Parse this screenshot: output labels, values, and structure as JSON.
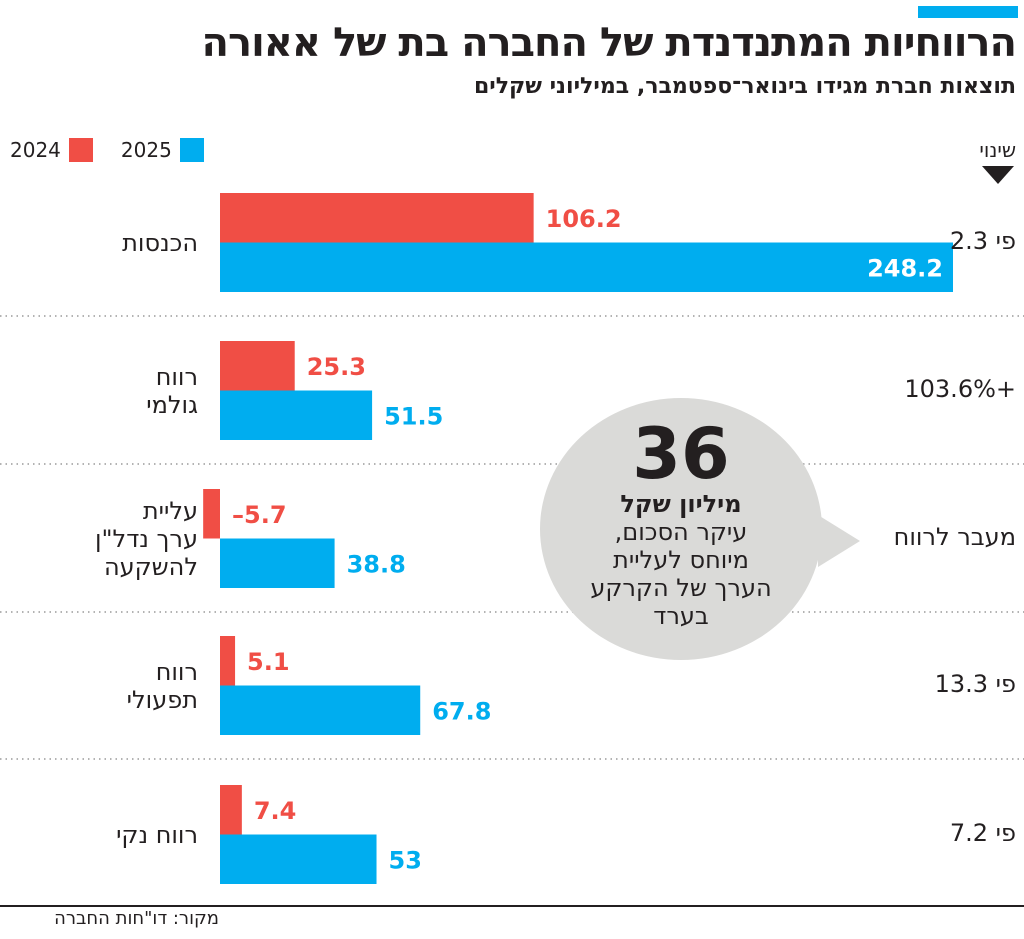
{
  "title": "הרווחיות המתנדנדת של החברה בת של אאורה",
  "subtitle": "תוצאות חברת מגידו בינואר־ספטמבר, במיליוני שקלים",
  "change_header": "שינוי",
  "source": "מקור: דו\"חות החברה",
  "colors": {
    "2024": "#f04e45",
    "2025": "#00adef",
    "accent": "#00adef",
    "bubble": "#dadad8"
  },
  "chart_data": {
    "type": "bar",
    "orientation": "horizontal",
    "categories": [
      "הכנסות",
      "רווח גולמי",
      "עליית ערך נדל\"ן להשקעה",
      "רווח תפעולי",
      "רווח נקי"
    ],
    "category_labels": [
      [
        "הכנסות"
      ],
      [
        "רווח",
        "גולמי"
      ],
      [
        "עליית",
        "ערך נדל\"ן",
        "להשקעה"
      ],
      [
        "רווח",
        "תפעולי"
      ],
      [
        "רווח נקי"
      ]
    ],
    "series": [
      {
        "name": "2024",
        "values": [
          106.2,
          25.3,
          -5.7,
          5.1,
          7.4
        ],
        "labels": [
          "106.2",
          "25.3",
          "–5.7",
          "5.1",
          "7.4"
        ]
      },
      {
        "name": "2025",
        "values": [
          248.2,
          51.5,
          38.8,
          67.8,
          53
        ],
        "labels": [
          "248.2",
          "51.5",
          "38.8",
          "67.8",
          "53"
        ]
      }
    ],
    "changes": [
      "פי 2.3",
      "+103.6%",
      "מעבר לרווח",
      "פי 13.3",
      "פי 7.2"
    ],
    "legend": [
      "2024",
      "2025"
    ],
    "legend_position": "top-left",
    "grid": false,
    "annotation": {
      "number": "36",
      "unit": "מיליון שקל",
      "text": [
        "עיקר הסכום,",
        "מיוחס לעליית",
        "הערך של הקרקע",
        "בערד"
      ]
    }
  }
}
